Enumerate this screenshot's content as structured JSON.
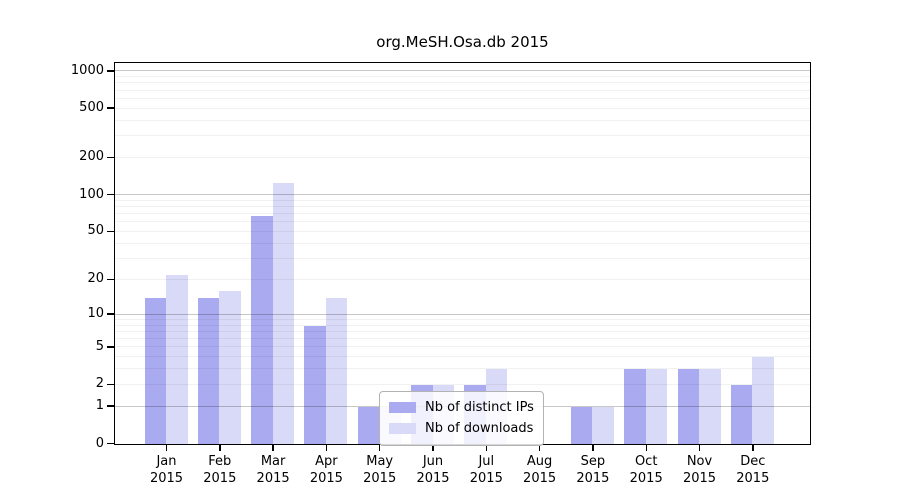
{
  "chart_data": {
    "type": "bar",
    "title": "org.MeSH.Osa.db 2015",
    "year": "2015",
    "categories": [
      "Jan",
      "Feb",
      "Mar",
      "Apr",
      "May",
      "Jun",
      "Jul",
      "Aug",
      "Sep",
      "Oct",
      "Nov",
      "Dec"
    ],
    "series": [
      {
        "name": "Nb of distinct IPs",
        "color": "#aaaaf0",
        "values": [
          14,
          14,
          68,
          8,
          1,
          2,
          2,
          0,
          1,
          3,
          3,
          2
        ]
      },
      {
        "name": "Nb of downloads",
        "color": "#d9d9f8",
        "values": [
          22,
          16,
          125,
          14,
          1,
          2,
          3,
          0,
          1,
          3,
          3,
          4
        ]
      }
    ],
    "yscale": "log10(value+1)",
    "ylim": [
      0,
      1200
    ],
    "ytick_labels": [
      "0",
      "1",
      "2",
      "5",
      "10",
      "20",
      "50",
      "100",
      "200",
      "500",
      "1000"
    ],
    "grid": "horizontal, minor gridlines at 2-9 of each decade, major at powers of 10",
    "legend_position": "inside-bottom-center",
    "xlabel": "",
    "ylabel": ""
  }
}
